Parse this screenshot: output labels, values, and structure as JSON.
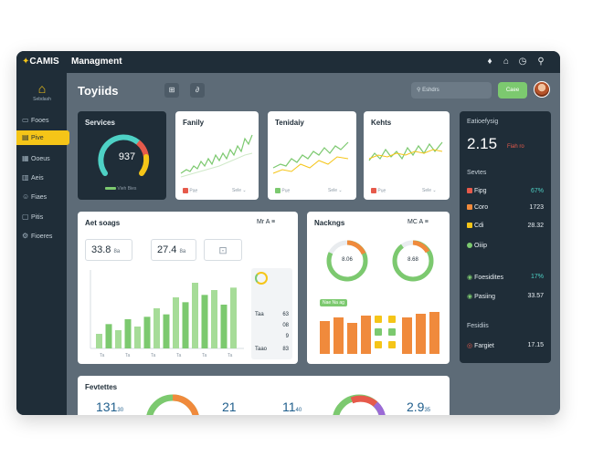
{
  "topbar": {
    "brand": "CAMIS",
    "title": "Managment",
    "icons": [
      "lightbulb-icon",
      "home-icon",
      "clock-icon",
      "search-icon"
    ]
  },
  "sidebar": {
    "logo_label": "Sebdash",
    "items": [
      {
        "label": "Fooes",
        "icon": "folder-icon"
      },
      {
        "label": "Pive",
        "icon": "file-icon"
      },
      {
        "label": "Ooeus",
        "icon": "grid-icon"
      },
      {
        "label": "Aeis",
        "icon": "chart-icon"
      },
      {
        "label": "Fiaes",
        "icon": "users-icon"
      },
      {
        "label": "Pitis",
        "icon": "image-icon"
      },
      {
        "label": "Fioeres",
        "icon": "settings-icon"
      }
    ],
    "active_index": 1
  },
  "header": {
    "title": "Toyiids",
    "search_placeholder": "Eshdrs",
    "cta_label": "Caee"
  },
  "services": {
    "title": "Services",
    "gauge_value": "937",
    "legend": "Vieh Bies"
  },
  "mini_cards": [
    {
      "title": "Fanily",
      "left_label": "Pae",
      "right_label": "Sele",
      "legend_color": "#e65a4b"
    },
    {
      "title": "Tenidaiy",
      "left_label": "Pue",
      "right_label": "Sele",
      "legend_color": "#7cc96f"
    },
    {
      "title": "Kehts",
      "left_label": "Pue",
      "right_label": "Sele",
      "legend_color": "#e65a4b"
    }
  ],
  "right_panel": {
    "title": "Eatioefysig",
    "value": "2.15",
    "value_note": "Fiah ro",
    "services_label": "Sevtes",
    "rows": [
      {
        "label": "Fipg",
        "value": "67%",
        "color": "#e65a4b"
      },
      {
        "label": "Coro",
        "value": "1723",
        "color": "#f08a3c"
      },
      {
        "label": "Cdi",
        "value": "28.32",
        "color": "#f5c518"
      },
      {
        "label": "Oiiip",
        "value": "",
        "color": "#7cc96f"
      }
    ],
    "rows2": [
      {
        "label": "Foesidites",
        "value": "17%"
      },
      {
        "label": "Pasiing",
        "value": "33.57"
      }
    ],
    "footer_label": "Fesidiis",
    "footer_row": {
      "label": "Fargiet",
      "value": "17.15"
    }
  },
  "activity": {
    "title": "Aet soags",
    "controls": "Mr A",
    "stats": [
      {
        "value": "33.8",
        "unit": "8a"
      },
      {
        "value": "27.4",
        "unit": "8a"
      }
    ],
    "side": [
      {
        "label": "Taa",
        "value": "63"
      },
      {
        "label": "",
        "value": "08"
      },
      {
        "label": "",
        "value": "9"
      },
      {
        "label": "Taao",
        "value": "83"
      }
    ],
    "bars": [
      12,
      20,
      15,
      24,
      18,
      26,
      33,
      28,
      42,
      38,
      54,
      44,
      48,
      36,
      50
    ],
    "ticks": [
      "Ta",
      "Ta",
      "Ta",
      "Ta",
      "Ta",
      "Ta"
    ]
  },
  "ratings": {
    "title": "Nackngs",
    "controls": "MC A",
    "donuts": [
      {
        "label": "8.06",
        "pct": 0.82
      },
      {
        "label": "8.68",
        "pct": 0.9
      }
    ],
    "chip": "Nae Na ag",
    "bars": [
      36,
      40,
      34,
      42,
      18,
      22,
      40,
      44,
      46
    ]
  },
  "favorites": {
    "title": "Fevtettes",
    "values": [
      {
        "value": "131",
        "unit": "30"
      },
      {
        "value": "21",
        "unit": ""
      },
      {
        "value": "11",
        "unit": "40"
      },
      {
        "value": "2.9",
        "unit": "35"
      }
    ]
  },
  "colors": {
    "navy": "#1f2d38",
    "green": "#7cc96f",
    "orange": "#f08a3c",
    "red": "#e65a4b",
    "yellow": "#f5c518",
    "teal": "#4ed1c5"
  }
}
